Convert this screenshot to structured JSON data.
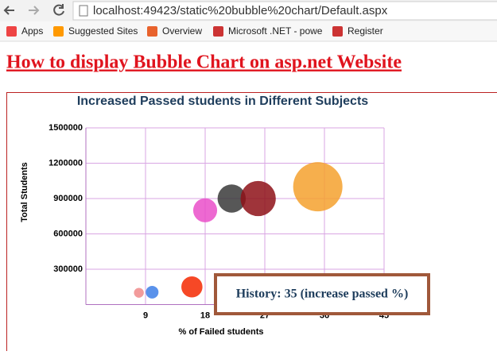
{
  "browser": {
    "url": "localhost:49423/static%20bubble%20chart/Default.aspx",
    "bookmarks": [
      "Apps",
      "Suggested Sites",
      "Overview",
      "Microsoft .NET - powe",
      "Register"
    ]
  },
  "page": {
    "heading": "How to display Bubble Chart on asp.net Website"
  },
  "chart_data": {
    "type": "bubble",
    "title": "Increased Passed students in Different Subjects",
    "x_label": "% of Failed students",
    "y_label": "Total Students",
    "x": [
      8,
      10,
      16,
      18,
      22,
      26,
      35
    ],
    "values": [
      100000,
      105000,
      150000,
      800000,
      900000,
      900000,
      1000000
    ],
    "sizes": [
      7,
      9,
      15,
      17,
      20,
      25,
      35
    ],
    "colors": [
      "#f08a8a",
      "#3d7fe8",
      "#f52800",
      "#ea4fc9",
      "#3a3a3a",
      "#8e1018",
      "#f5a12e"
    ],
    "xlim": [
      0,
      45
    ],
    "xticks": [
      9,
      18,
      27,
      36,
      45
    ],
    "ylim": [
      0,
      1500000
    ],
    "yticks": [
      300000,
      600000,
      900000,
      1200000,
      1500000
    ],
    "grid": true,
    "tooltip": "History: 35 (increase passed %)"
  }
}
